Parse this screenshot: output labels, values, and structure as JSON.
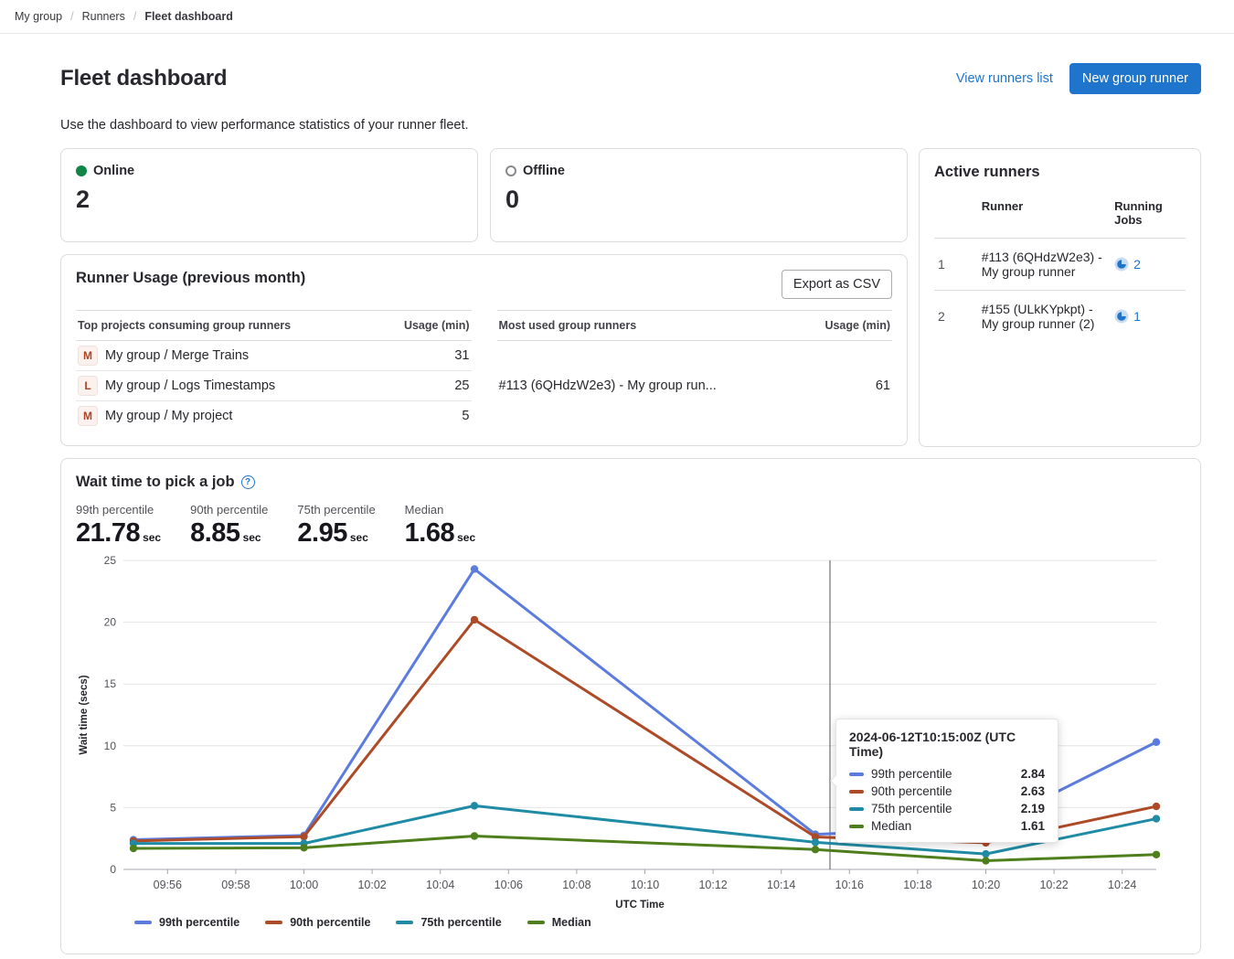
{
  "breadcrumb": {
    "items": [
      "My group",
      "Runners",
      "Fleet dashboard"
    ]
  },
  "header": {
    "title": "Fleet dashboard",
    "view_runners_link": "View runners list",
    "new_runner_button": "New group runner",
    "description": "Use the dashboard to view performance statistics of your runner fleet."
  },
  "status_cards": {
    "online": {
      "label": "Online",
      "value": "2"
    },
    "offline": {
      "label": "Offline",
      "value": "0"
    }
  },
  "active_runners": {
    "title": "Active runners",
    "columns": {
      "runner": "Runner",
      "jobs": "Running Jobs"
    },
    "rows": [
      {
        "index": "1",
        "runner": "#113 (6QHdzW2e3) - My group runner",
        "jobs": "2"
      },
      {
        "index": "2",
        "runner": "#155 (ULkKYpkpt) - My group runner (2)",
        "jobs": "1"
      }
    ]
  },
  "runner_usage": {
    "title": "Runner Usage (previous month)",
    "export_button": "Export as CSV",
    "projects_table": {
      "col_name": "Top projects consuming group runners",
      "col_usage": "Usage (min)",
      "rows": [
        {
          "avatar": "M",
          "name": "My group / Merge Trains",
          "usage": "31"
        },
        {
          "avatar": "L",
          "name": "My group / Logs Timestamps",
          "usage": "25"
        },
        {
          "avatar": "M",
          "name": "My group / My project",
          "usage": "5"
        }
      ]
    },
    "runners_table": {
      "col_name": "Most used group runners",
      "col_usage": "Usage (min)",
      "rows": [
        {
          "name": "#113 (6QHdzW2e3) - My group run...",
          "usage": "61"
        }
      ]
    }
  },
  "wait_time": {
    "title": "Wait time to pick a job",
    "stats": [
      {
        "label": "99th percentile",
        "value": "21.78",
        "unit": "sec"
      },
      {
        "label": "90th percentile",
        "value": "8.85",
        "unit": "sec"
      },
      {
        "label": "75th percentile",
        "value": "2.95",
        "unit": "sec"
      },
      {
        "label": "Median",
        "value": "1.68",
        "unit": "sec"
      }
    ]
  },
  "chart_data": {
    "type": "line",
    "x": [
      "09:55",
      "10:00",
      "10:05",
      "10:15",
      "10:20",
      "10:25"
    ],
    "series": [
      {
        "name": "99th percentile",
        "color": "#5c7cdd",
        "values": [
          2.4,
          2.75,
          24.3,
          2.84,
          3.4,
          10.3
        ]
      },
      {
        "name": "90th percentile",
        "color": "#ad4a28",
        "values": [
          2.3,
          2.65,
          20.2,
          2.63,
          2.15,
          5.1
        ]
      },
      {
        "name": "75th percentile",
        "color": "#1f8ba5",
        "values": [
          2.1,
          2.1,
          5.15,
          2.19,
          1.25,
          4.1
        ]
      },
      {
        "name": "Median",
        "color": "#4f7e1c",
        "values": [
          1.7,
          1.75,
          2.7,
          1.61,
          0.7,
          1.2
        ]
      }
    ],
    "ylabel": "Wait time (secs)",
    "xlabel": "UTC Time",
    "ylim": [
      0,
      25
    ],
    "yticks": [
      0,
      5,
      10,
      15,
      20,
      25
    ],
    "xticks": [
      "09:56",
      "09:58",
      "10:00",
      "10:02",
      "10:04",
      "10:06",
      "10:08",
      "10:10",
      "10:12",
      "10:14",
      "10:16",
      "10:18",
      "10:20",
      "10:22",
      "10:24"
    ],
    "grid": true,
    "legend_position": "bottom-left",
    "tooltip": {
      "title": "2024-06-12T10:15:00Z (UTC Time)",
      "x": "10:15",
      "rows": [
        {
          "name": "99th percentile",
          "value": "2.84"
        },
        {
          "name": "90th percentile",
          "value": "2.63"
        },
        {
          "name": "75th percentile",
          "value": "2.19"
        },
        {
          "name": "Median",
          "value": "1.61"
        }
      ]
    }
  }
}
